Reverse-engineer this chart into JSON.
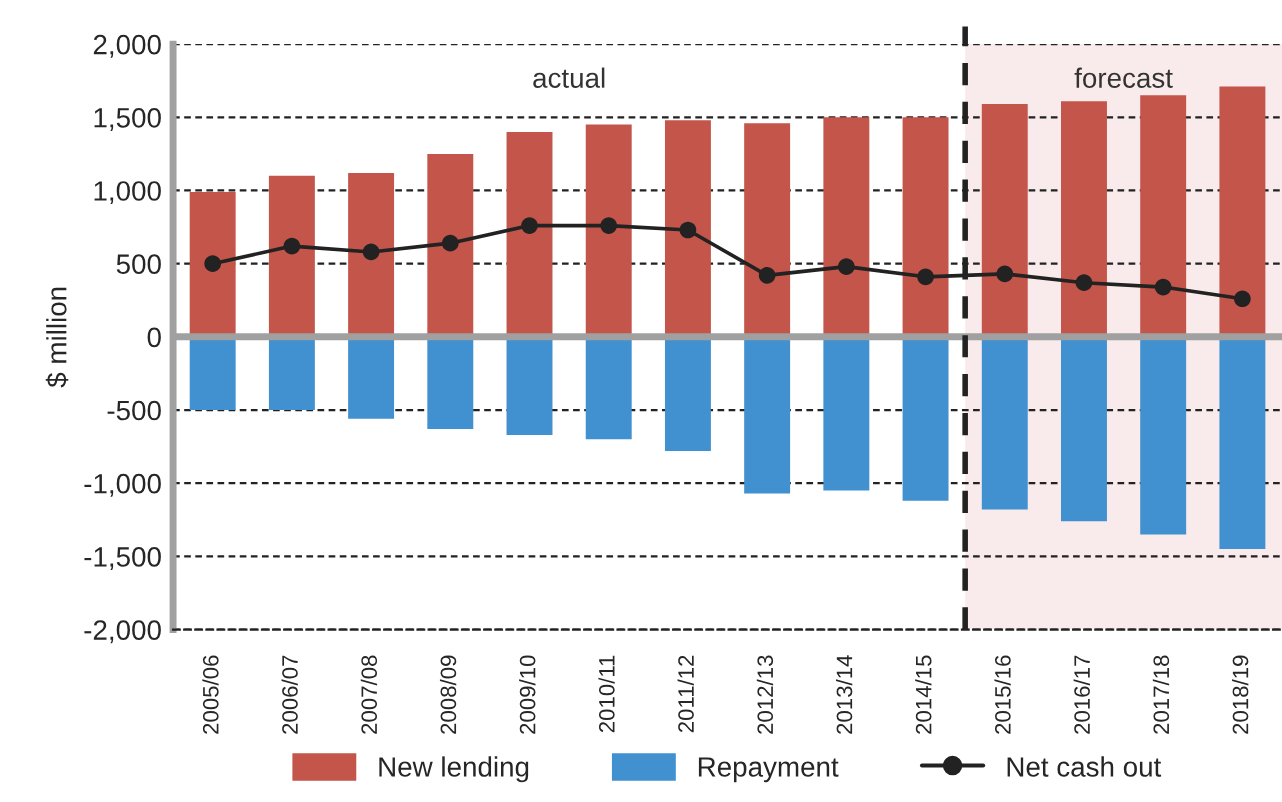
{
  "chart_data": {
    "type": "bar",
    "ylabel": "$ million",
    "categories": [
      "2005/06",
      "2006/07",
      "2007/08",
      "2008/09",
      "2009/10",
      "2010/11",
      "2011/12",
      "2012/13",
      "2013/14",
      "2014/15",
      "2015/16",
      "2016/17",
      "2017/18",
      "2018/19"
    ],
    "series": [
      {
        "name": "New lending",
        "color": "#c4554a",
        "values": [
          990,
          1100,
          1120,
          1250,
          1400,
          1450,
          1480,
          1460,
          1500,
          1500,
          1590,
          1610,
          1650,
          1710
        ]
      },
      {
        "name": "Repayment",
        "color": "#4190cf",
        "values": [
          -500,
          -500,
          -560,
          -630,
          -670,
          -700,
          -780,
          -1070,
          -1050,
          -1120,
          -1180,
          -1260,
          -1350,
          -1450
        ]
      },
      {
        "name": "Net cash out",
        "type": "line",
        "color": "#222222",
        "marker": "circle",
        "line_style": "solid",
        "values": [
          500,
          620,
          580,
          640,
          760,
          760,
          730,
          420,
          480,
          410,
          430,
          370,
          340,
          260
        ]
      }
    ],
    "stacked": true,
    "ylim": [
      -2000,
      2000
    ],
    "yticks": [
      {
        "value": -2000,
        "label": "-2,000"
      },
      {
        "value": -1500,
        "label": "-1,500"
      },
      {
        "value": -1000,
        "label": "-1,000"
      },
      -500,
      0,
      500,
      {
        "value": 1000,
        "label": "1,000"
      },
      {
        "value": 1500,
        "label": "1,500"
      },
      {
        "value": 2000,
        "label": "2,000"
      }
    ],
    "grid": "y",
    "legend": "bottom",
    "annotations": [
      "actual"
    ],
    "ref_lines": [
      {
        "axis": "x",
        "value": "2015/16",
        "color": "#222222",
        "line_style": "dashed"
      }
    ],
    "bands": [
      {
        "axis": "x",
        "from": "2015/16",
        "to": "2018/19",
        "label": "forecast",
        "color": "#f9ebeb"
      }
    ]
  }
}
